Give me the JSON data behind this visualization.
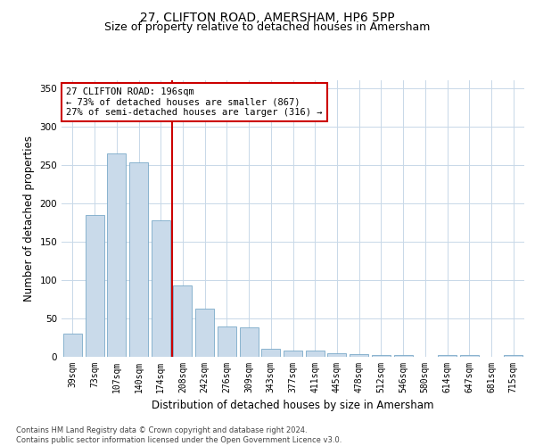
{
  "title": "27, CLIFTON ROAD, AMERSHAM, HP6 5PP",
  "subtitle": "Size of property relative to detached houses in Amersham",
  "xlabel": "Distribution of detached houses by size in Amersham",
  "ylabel": "Number of detached properties",
  "categories": [
    "39sqm",
    "73sqm",
    "107sqm",
    "140sqm",
    "174sqm",
    "208sqm",
    "242sqm",
    "276sqm",
    "309sqm",
    "343sqm",
    "377sqm",
    "411sqm",
    "445sqm",
    "478sqm",
    "512sqm",
    "546sqm",
    "580sqm",
    "614sqm",
    "647sqm",
    "681sqm",
    "715sqm"
  ],
  "values": [
    30,
    185,
    265,
    253,
    178,
    93,
    63,
    40,
    38,
    11,
    8,
    8,
    5,
    3,
    2,
    2,
    0,
    2,
    2,
    0,
    2
  ],
  "bar_color": "#c9daea",
  "bar_edge_color": "#7aaac8",
  "vline_color": "#cc0000",
  "annotation_text": "27 CLIFTON ROAD: 196sqm\n← 73% of detached houses are smaller (867)\n27% of semi-detached houses are larger (316) →",
  "annotation_box_color": "#ffffff",
  "annotation_box_edge": "#cc0000",
  "ylim": [
    0,
    360
  ],
  "yticks": [
    0,
    50,
    100,
    150,
    200,
    250,
    300,
    350
  ],
  "background_color": "#ffffff",
  "grid_color": "#c8d8e8",
  "footnote": "Contains HM Land Registry data © Crown copyright and database right 2024.\nContains public sector information licensed under the Open Government Licence v3.0.",
  "title_fontsize": 10,
  "subtitle_fontsize": 9,
  "xlabel_fontsize": 8.5,
  "ylabel_fontsize": 8.5,
  "tick_fontsize": 7.5,
  "xtick_fontsize": 7,
  "footnote_fontsize": 6,
  "ann_fontsize": 7.5
}
